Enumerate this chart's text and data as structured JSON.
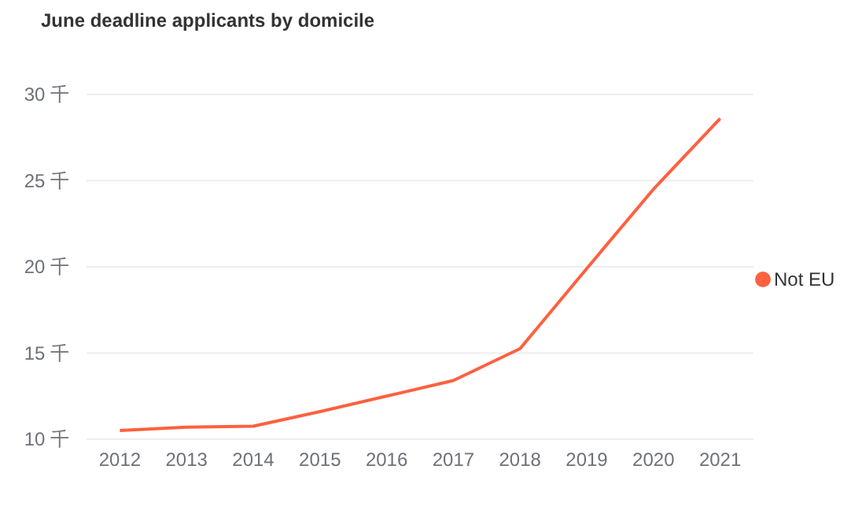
{
  "chart_data": {
    "type": "line",
    "title": "June deadline applicants by domicile",
    "categories": [
      "2012",
      "2013",
      "2014",
      "2015",
      "2016",
      "2017",
      "2018",
      "2019",
      "2020",
      "2021"
    ],
    "series": [
      {
        "name": "Not EU",
        "color": "#fd6140",
        "values": [
          10.5,
          10.7,
          10.75,
          11.6,
          12.5,
          13.4,
          15.25,
          19.9,
          24.5,
          28.6
        ]
      }
    ],
    "ylim": [
      10,
      30
    ],
    "yticks": [
      {
        "value": 10,
        "label": "10 千"
      },
      {
        "value": 15,
        "label": "15 千"
      },
      {
        "value": 20,
        "label": "20 千"
      },
      {
        "value": 25,
        "label": "25 千"
      },
      {
        "value": 30,
        "label": "30 千"
      }
    ],
    "grid": "y",
    "legend": "right",
    "marker": "none"
  }
}
